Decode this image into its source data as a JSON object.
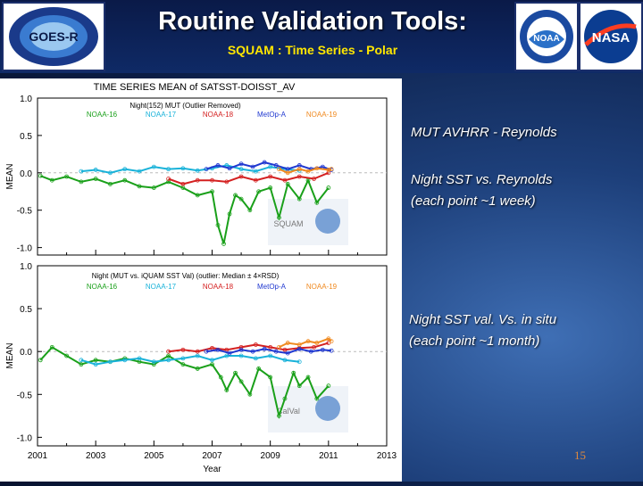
{
  "header": {
    "title": "Routine Validation Tools:",
    "subtitle": "SQUAM : Time Series - Polar",
    "logos": [
      {
        "name": "goes-r-logo",
        "text": "GOES-R"
      },
      {
        "name": "noaa-logo",
        "text": "NOAA"
      },
      {
        "name": "nasa-logo",
        "text": "NASA"
      }
    ]
  },
  "labels": {
    "top_caption": "MUT AVHRR - Reynolds",
    "top_desc": [
      "Night SST vs. Reynolds",
      "(each point ~1 week)"
    ],
    "bottom_desc": [
      "Night SST val. Vs. in situ",
      "(each point ~1 month)"
    ]
  },
  "page_number": "15",
  "chart_data": [
    {
      "type": "line",
      "title": "TIME SERIES MEAN of SATSST-DOISST_AV",
      "subtitle": "Night(152) MUT (Outlier Removed)",
      "ylabel": "MEAN",
      "ylim": [
        -1.1,
        1.0
      ],
      "yticks": [
        "1.0",
        "0.5",
        "0.0",
        "-0.5",
        "-1.0"
      ],
      "xlim": [
        2001,
        2013
      ],
      "watermark": "SQUAM",
      "series": [
        {
          "name": "NOAA-16",
          "color": "#1aa01a",
          "x": [
            2001.1,
            2001.5,
            2002,
            2002.5,
            2003,
            2003.5,
            2004,
            2004.5,
            2005,
            2005.5,
            2006,
            2006.5,
            2007,
            2007.2,
            2007.4,
            2007.6,
            2007.8,
            2008,
            2008.3,
            2008.6,
            2009,
            2009.3,
            2009.6,
            2010,
            2010.3,
            2010.6,
            2011
          ],
          "values": [
            -0.04,
            -0.1,
            -0.05,
            -0.12,
            -0.08,
            -0.15,
            -0.1,
            -0.18,
            -0.2,
            -0.12,
            -0.2,
            -0.3,
            -0.25,
            -0.7,
            -0.95,
            -0.55,
            -0.3,
            -0.35,
            -0.5,
            -0.25,
            -0.2,
            -0.6,
            -0.15,
            -0.35,
            -0.1,
            -0.4,
            -0.2
          ]
        },
        {
          "name": "NOAA-17",
          "color": "#19b2d9",
          "x": [
            2002.5,
            2003,
            2003.5,
            2004,
            2004.5,
            2005,
            2005.5,
            2006,
            2006.5,
            2007,
            2007.5,
            2008,
            2008.5,
            2009,
            2009.5,
            2010
          ],
          "values": [
            0.02,
            0.04,
            0.0,
            0.05,
            0.02,
            0.08,
            0.05,
            0.06,
            0.03,
            0.06,
            0.1,
            0.05,
            0.02,
            0.08,
            0.05,
            0.03
          ]
        },
        {
          "name": "NOAA-18",
          "color": "#d42020",
          "x": [
            2005.5,
            2006,
            2006.5,
            2007,
            2007.5,
            2008,
            2008.5,
            2009,
            2009.5,
            2010,
            2010.5,
            2011
          ],
          "values": [
            -0.08,
            -0.15,
            -0.1,
            -0.1,
            -0.12,
            -0.05,
            -0.1,
            -0.05,
            -0.1,
            -0.05,
            -0.08,
            0.0
          ]
        },
        {
          "name": "MetOp-A",
          "color": "#2038d0",
          "x": [
            2006.8,
            2007.2,
            2007.6,
            2008,
            2008.4,
            2008.8,
            2009.2,
            2009.6,
            2010,
            2010.4,
            2010.8,
            2011.1
          ],
          "values": [
            0.05,
            0.1,
            0.06,
            0.12,
            0.08,
            0.14,
            0.1,
            0.05,
            0.1,
            0.05,
            0.08,
            0.04
          ]
        },
        {
          "name": "NOAA-19",
          "color": "#f08a20",
          "x": [
            2009.3,
            2009.6,
            2010,
            2010.3,
            2010.6,
            2011,
            2011.1
          ],
          "values": [
            0.05,
            0.0,
            0.05,
            0.02,
            0.06,
            0.04,
            0.05
          ]
        }
      ]
    },
    {
      "type": "line",
      "subtitle": "Night (MUT vs. iQUAM SST Val) (outlier: Median ± 4×RSD)",
      "xlabel": "Year",
      "ylabel": "MEAN",
      "ylim": [
        -1.1,
        1.0
      ],
      "yticks": [
        "1.0",
        "0.5",
        "0.0",
        "-0.5",
        "-1.0"
      ],
      "xlim": [
        2001,
        2013
      ],
      "xticks": [
        "2001",
        "2003",
        "2005",
        "2007",
        "2009",
        "2011",
        "2013"
      ],
      "watermark": "CalVal",
      "series": [
        {
          "name": "NOAA-16",
          "color": "#1aa01a",
          "x": [
            2001.1,
            2001.5,
            2002,
            2002.5,
            2003,
            2003.5,
            2004,
            2004.5,
            2005,
            2005.5,
            2006,
            2006.5,
            2007,
            2007.3,
            2007.5,
            2007.8,
            2008,
            2008.3,
            2008.6,
            2009,
            2009.3,
            2009.5,
            2009.8,
            2010,
            2010.3,
            2010.6,
            2011
          ],
          "values": [
            -0.1,
            0.05,
            -0.05,
            -0.15,
            -0.1,
            -0.12,
            -0.08,
            -0.12,
            -0.15,
            -0.05,
            -0.15,
            -0.2,
            -0.15,
            -0.3,
            -0.45,
            -0.25,
            -0.35,
            -0.5,
            -0.2,
            -0.3,
            -0.75,
            -0.55,
            -0.25,
            -0.4,
            -0.3,
            -0.55,
            -0.4
          ]
        },
        {
          "name": "NOAA-17",
          "color": "#19b2d9",
          "x": [
            2002.5,
            2003,
            2003.5,
            2004,
            2004.5,
            2005,
            2005.5,
            2006,
            2006.5,
            2007,
            2007.5,
            2008,
            2008.5,
            2009,
            2009.5,
            2010
          ],
          "values": [
            -0.1,
            -0.15,
            -0.12,
            -0.1,
            -0.08,
            -0.12,
            -0.1,
            -0.08,
            -0.05,
            -0.1,
            -0.05,
            -0.05,
            -0.08,
            -0.05,
            -0.1,
            -0.12
          ]
        },
        {
          "name": "NOAA-18",
          "color": "#d42020",
          "x": [
            2005.5,
            2006,
            2006.5,
            2007,
            2007.5,
            2008,
            2008.5,
            2009,
            2009.5,
            2010,
            2010.5,
            2011
          ],
          "values": [
            0.0,
            0.02,
            0.0,
            0.04,
            0.02,
            0.05,
            0.08,
            0.05,
            0.02,
            0.04,
            0.05,
            0.1
          ]
        },
        {
          "name": "MetOp-A",
          "color": "#2038d0",
          "x": [
            2006.8,
            2007.2,
            2007.6,
            2008,
            2008.4,
            2008.8,
            2009.2,
            2009.6,
            2010,
            2010.4,
            2010.8,
            2011.1
          ],
          "values": [
            0.0,
            0.02,
            -0.02,
            0.02,
            0.0,
            0.03,
            0.0,
            -0.02,
            0.03,
            0.0,
            0.02,
            0.01
          ]
        },
        {
          "name": "NOAA-19",
          "color": "#f08a20",
          "x": [
            2009.3,
            2009.6,
            2010,
            2010.3,
            2010.6,
            2011,
            2011.1
          ],
          "values": [
            0.05,
            0.1,
            0.08,
            0.12,
            0.1,
            0.15,
            0.12
          ]
        }
      ]
    }
  ]
}
